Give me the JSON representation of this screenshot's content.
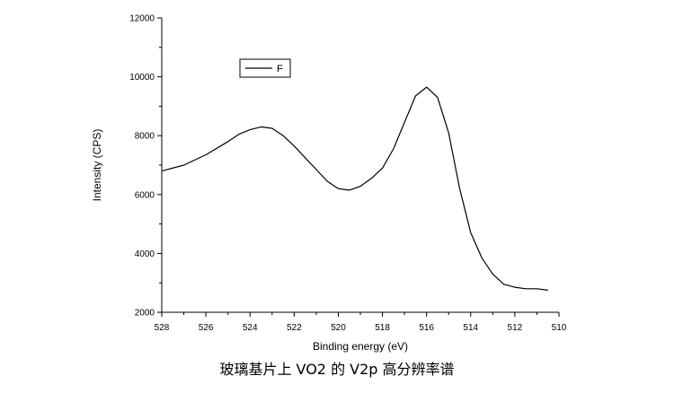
{
  "chart_data": {
    "type": "line",
    "xlabel": "Binding energy (eV)",
    "ylabel": "Intensity (CPS)",
    "xlim": [
      528,
      510
    ],
    "ylim": [
      2000,
      12000
    ],
    "x_reversed": true,
    "xticks": [
      "528",
      "526",
      "524",
      "522",
      "520",
      "518",
      "516",
      "514",
      "512",
      "510"
    ],
    "yticks": [
      "2000",
      "4000",
      "6000",
      "8000",
      "10000",
      "12000"
    ],
    "legend_position": "top-left",
    "grid": false,
    "series": [
      {
        "name": "F",
        "color": "#000000",
        "x": [
          528.0,
          527.0,
          526.0,
          525.0,
          524.5,
          524.0,
          523.5,
          523.0,
          522.5,
          522.0,
          521.5,
          521.0,
          520.5,
          520.0,
          519.5,
          519.0,
          518.5,
          518.0,
          517.5,
          517.0,
          516.5,
          516.0,
          515.5,
          515.0,
          514.5,
          514.0,
          513.5,
          513.0,
          512.5,
          512.0,
          511.5,
          511.0,
          510.5
        ],
        "y": [
          6800,
          7000,
          7350,
          7800,
          8050,
          8200,
          8300,
          8250,
          8000,
          7650,
          7250,
          6850,
          6450,
          6200,
          6150,
          6280,
          6550,
          6900,
          7550,
          8450,
          9350,
          9650,
          9300,
          8100,
          6200,
          4700,
          3850,
          3300,
          2950,
          2850,
          2800,
          2800,
          2750
        ]
      }
    ]
  },
  "caption": "玻璃基片上 VO2 的 V2p 高分辨率谱"
}
